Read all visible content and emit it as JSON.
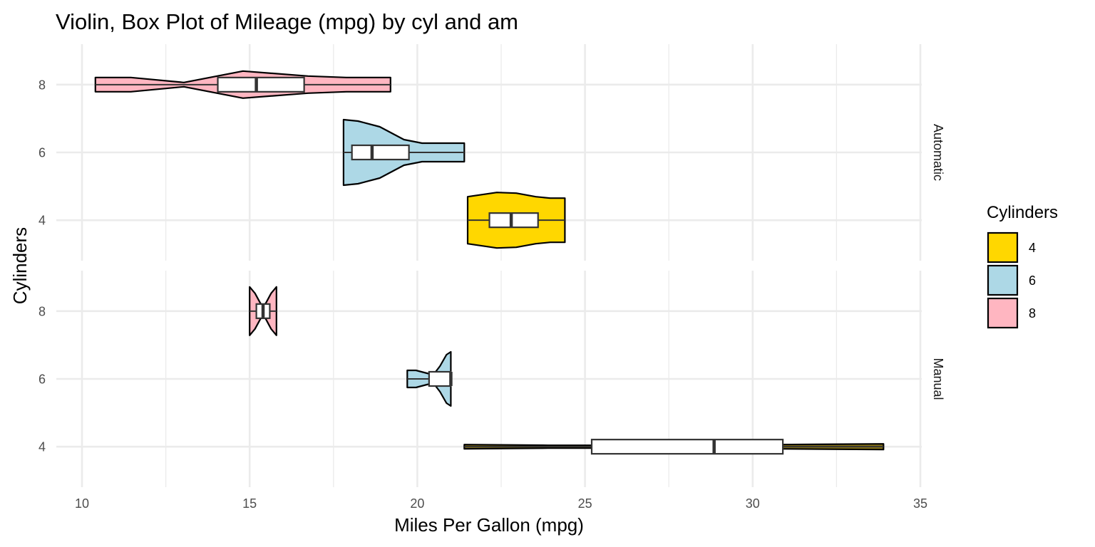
{
  "chart_data": {
    "type": "violin",
    "title": "Violin, Box Plot of Mileage (mpg) by cyl and am",
    "xlabel": "Miles Per Gallon (mpg)",
    "ylabel": "Cylinders",
    "xlim": [
      10,
      35
    ],
    "x_ticks": [
      "10",
      "15",
      "20",
      "25",
      "30",
      "35"
    ],
    "y_categories": [
      "4",
      "6",
      "8"
    ],
    "grid": true,
    "facet_by": "am",
    "facets": [
      {
        "label": "Automatic",
        "groups": [
          {
            "cyl": "8",
            "min": 10.4,
            "q1": 14.05,
            "median": 15.2,
            "q3": 16.625,
            "max": 19.2
          },
          {
            "cyl": "6",
            "min": 17.8,
            "q1": 18.05,
            "median": 18.65,
            "q3": 19.75,
            "max": 21.4
          },
          {
            "cyl": "4",
            "min": 21.5,
            "q1": 22.15,
            "median": 22.8,
            "q3": 23.6,
            "max": 24.4
          }
        ]
      },
      {
        "label": "Manual",
        "groups": [
          {
            "cyl": "8",
            "min": 15.0,
            "q1": 15.2,
            "median": 15.4,
            "q3": 15.6,
            "max": 15.8
          },
          {
            "cyl": "6",
            "min": 19.7,
            "q1": 20.35,
            "median": 21.0,
            "q3": 21.0,
            "max": 21.0
          },
          {
            "cyl": "4",
            "min": 21.4,
            "q1": 25.2,
            "median": 28.85,
            "q3": 30.9,
            "max": 33.9
          }
        ]
      }
    ],
    "legend": {
      "title": "Cylinders",
      "position": "right",
      "items": [
        {
          "label": "4",
          "color": "#FFD700"
        },
        {
          "label": "6",
          "color": "#ADD8E6"
        },
        {
          "label": "8",
          "color": "#FFB6C1"
        }
      ]
    }
  }
}
